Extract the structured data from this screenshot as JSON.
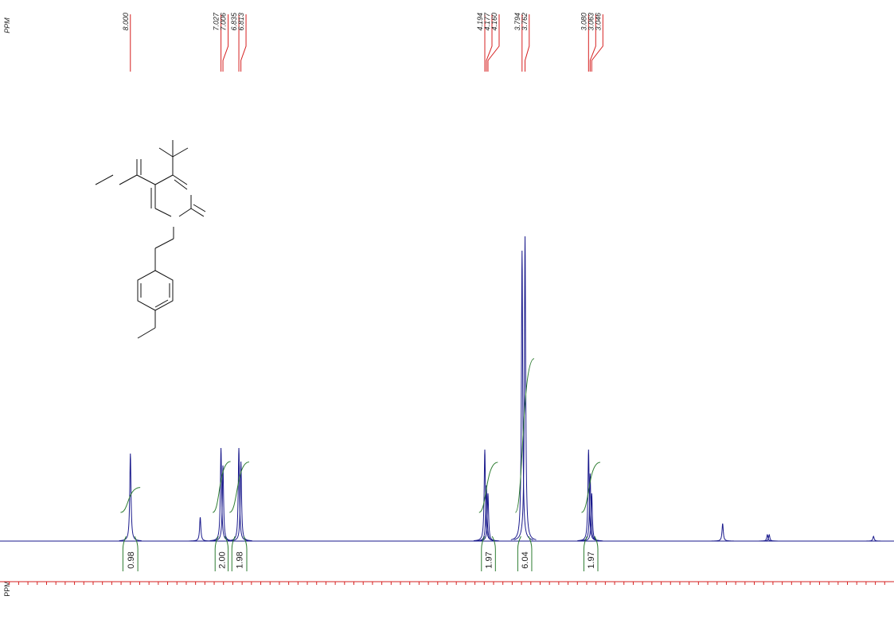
{
  "chart_data": {
    "type": "nmr",
    "axis_label": "PPM",
    "xlim": [
      9.4,
      -0.2
    ],
    "ylim": [
      0,
      400
    ],
    "xticks": [
      9.3,
      9.2,
      9.1,
      9,
      8.9,
      8.8,
      8.7,
      8.6,
      8.5,
      8.4,
      8.3,
      8.2,
      8.1,
      8,
      7.9,
      7.8,
      7.7,
      7.6,
      7.5,
      7.4,
      7.3,
      7.2,
      7.1,
      7,
      6.9,
      6.8,
      6.7,
      6.6,
      6.5,
      6.4,
      6.3,
      6.2,
      6.1,
      6,
      5.9,
      5.8,
      5.7,
      5.6,
      5.5,
      5.4,
      5.3,
      5.2,
      5.1,
      5,
      4.9,
      4.8,
      4.7,
      4.6,
      4.5,
      4.4,
      4.3,
      4.2,
      4.1,
      4,
      3.9,
      3.8,
      3.7,
      3.6,
      3.5,
      3.4,
      3.3,
      3.2,
      3.1,
      3,
      2.9,
      2.8,
      2.7,
      2.6,
      2.5,
      2.4,
      2.3,
      2.2,
      2.1,
      2,
      1.9,
      1.8,
      1.7,
      1.6,
      1.5,
      1.4,
      1.3,
      1.2,
      1.1,
      1,
      0.9,
      0.8,
      0.7,
      0.6,
      0.5,
      0.4,
      0.3,
      0.2,
      0.1,
      0,
      -0.1
    ],
    "line_color": "#1a1a8c",
    "label_color": "#d62020",
    "integral_color": "#2e7d32",
    "peaks": {
      "x": [
        8.0,
        7.25,
        7.027,
        7.006,
        6.835,
        6.813,
        4.194,
        4.177,
        4.16,
        3.794,
        3.762,
        3.08,
        3.063,
        3.046,
        1.64,
        1.16,
        1.14,
        0.02
      ],
      "values": [
        110,
        30,
        117,
        95,
        117,
        100,
        115,
        70,
        60,
        365,
        383,
        115,
        85,
        60,
        22,
        8,
        8,
        6
      ]
    },
    "peak_labels": [
      {
        "value": 8.0,
        "label": "8.000"
      },
      {
        "value": 7.027,
        "label": "7.027"
      },
      {
        "value": 7.006,
        "label": "7.006"
      },
      {
        "value": 6.835,
        "label": "6.835"
      },
      {
        "value": 6.813,
        "label": "6.813"
      },
      {
        "value": 4.194,
        "label": "4.194"
      },
      {
        "value": 4.177,
        "label": "4.177"
      },
      {
        "value": 4.16,
        "label": "4.160"
      },
      {
        "value": 3.794,
        "label": "3.794"
      },
      {
        "value": 3.762,
        "label": "3.762"
      },
      {
        "value": 3.08,
        "label": "3.080"
      },
      {
        "value": 3.063,
        "label": "3.063"
      },
      {
        "value": 3.046,
        "label": "3.046"
      }
    ],
    "integrals": {
      "values": [
        0.98,
        2,
        1.98,
        1.97,
        6.04,
        1.97
      ],
      "value_labels": [
        "0.98",
        "2.00",
        "1.98",
        "1.97",
        "6.04",
        "1.97"
      ],
      "ranges": [
        [
          8.08,
          7.92
        ],
        [
          7.09,
          6.95
        ],
        [
          6.91,
          6.75
        ],
        [
          4.23,
          4.08
        ],
        [
          3.84,
          3.69
        ],
        [
          3.13,
          2.98
        ]
      ]
    }
  }
}
